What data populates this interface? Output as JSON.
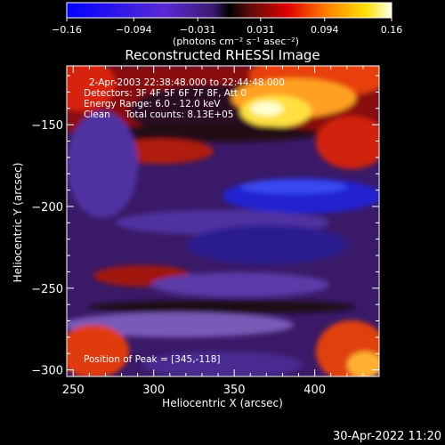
{
  "chart_data": {
    "type": "heatmap",
    "title": "Reconstructed RHESSI Image",
    "xlabel": "Heliocentric X (arcsec)",
    "ylabel": "Heliocentric Y (arcsec)",
    "xlim": [
      246,
      440
    ],
    "ylim": [
      -304,
      -114
    ],
    "x_ticks": [
      250,
      300,
      350,
      400
    ],
    "y_ticks": [
      -150,
      -200,
      -250,
      -300
    ],
    "colorbar": {
      "range": [
        -0.16,
        0.16
      ],
      "ticks": [
        "-0.16",
        "-0.094",
        "-0.031",
        "0.031",
        "0.094",
        "0.16"
      ],
      "units_label": "(photons cm⁻² s⁻¹ asec⁻²)"
    },
    "annotations": [
      "2-Apr-2003 22:38:48.000 to 22:44:48.000",
      "Detectors: 3F 4F 5F 6F 7F 8F, Att 0",
      "Energy Range: 6.0 - 12.0 keV",
      "Clean     Total counts: 8.13E+05"
    ],
    "peak_label": "Position of Peak = [345,-118]",
    "peak": [
      345,
      -118
    ],
    "timestamp": "30-Apr-2022 11:20"
  }
}
